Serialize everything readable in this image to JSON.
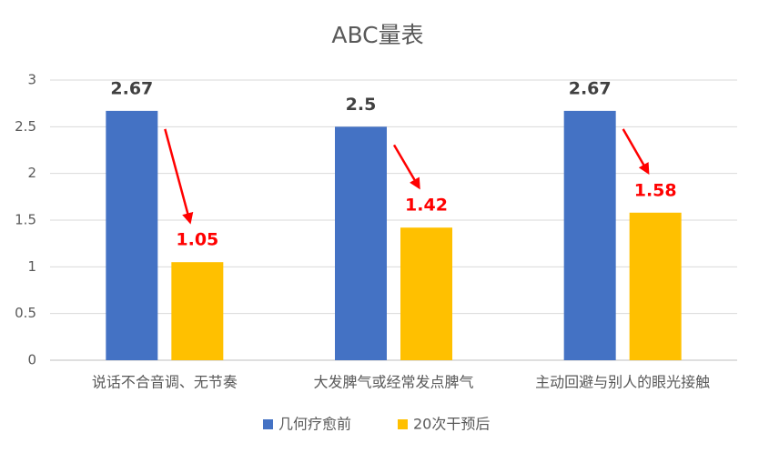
{
  "chart_data": {
    "type": "bar",
    "title": "ABC量表",
    "categories": [
      "说话不合音调、无节奏",
      "大发脾气或经常发点脾气",
      "主动回避与别人的眼光接触"
    ],
    "series": [
      {
        "name": "几何疗愈前",
        "color": "#4472C4",
        "label_color": "#404040",
        "values": [
          2.67,
          2.5,
          2.67
        ]
      },
      {
        "name": "20次干预后",
        "color": "#FFC000",
        "label_color": "#FF0000",
        "values": [
          1.05,
          1.42,
          1.58
        ]
      }
    ],
    "ylim": [
      0,
      3
    ],
    "yticks": [
      0,
      0.5,
      1,
      1.5,
      2,
      2.5,
      3
    ],
    "grid": true,
    "legend": "bottom",
    "arrow_color": "#FF0000"
  }
}
